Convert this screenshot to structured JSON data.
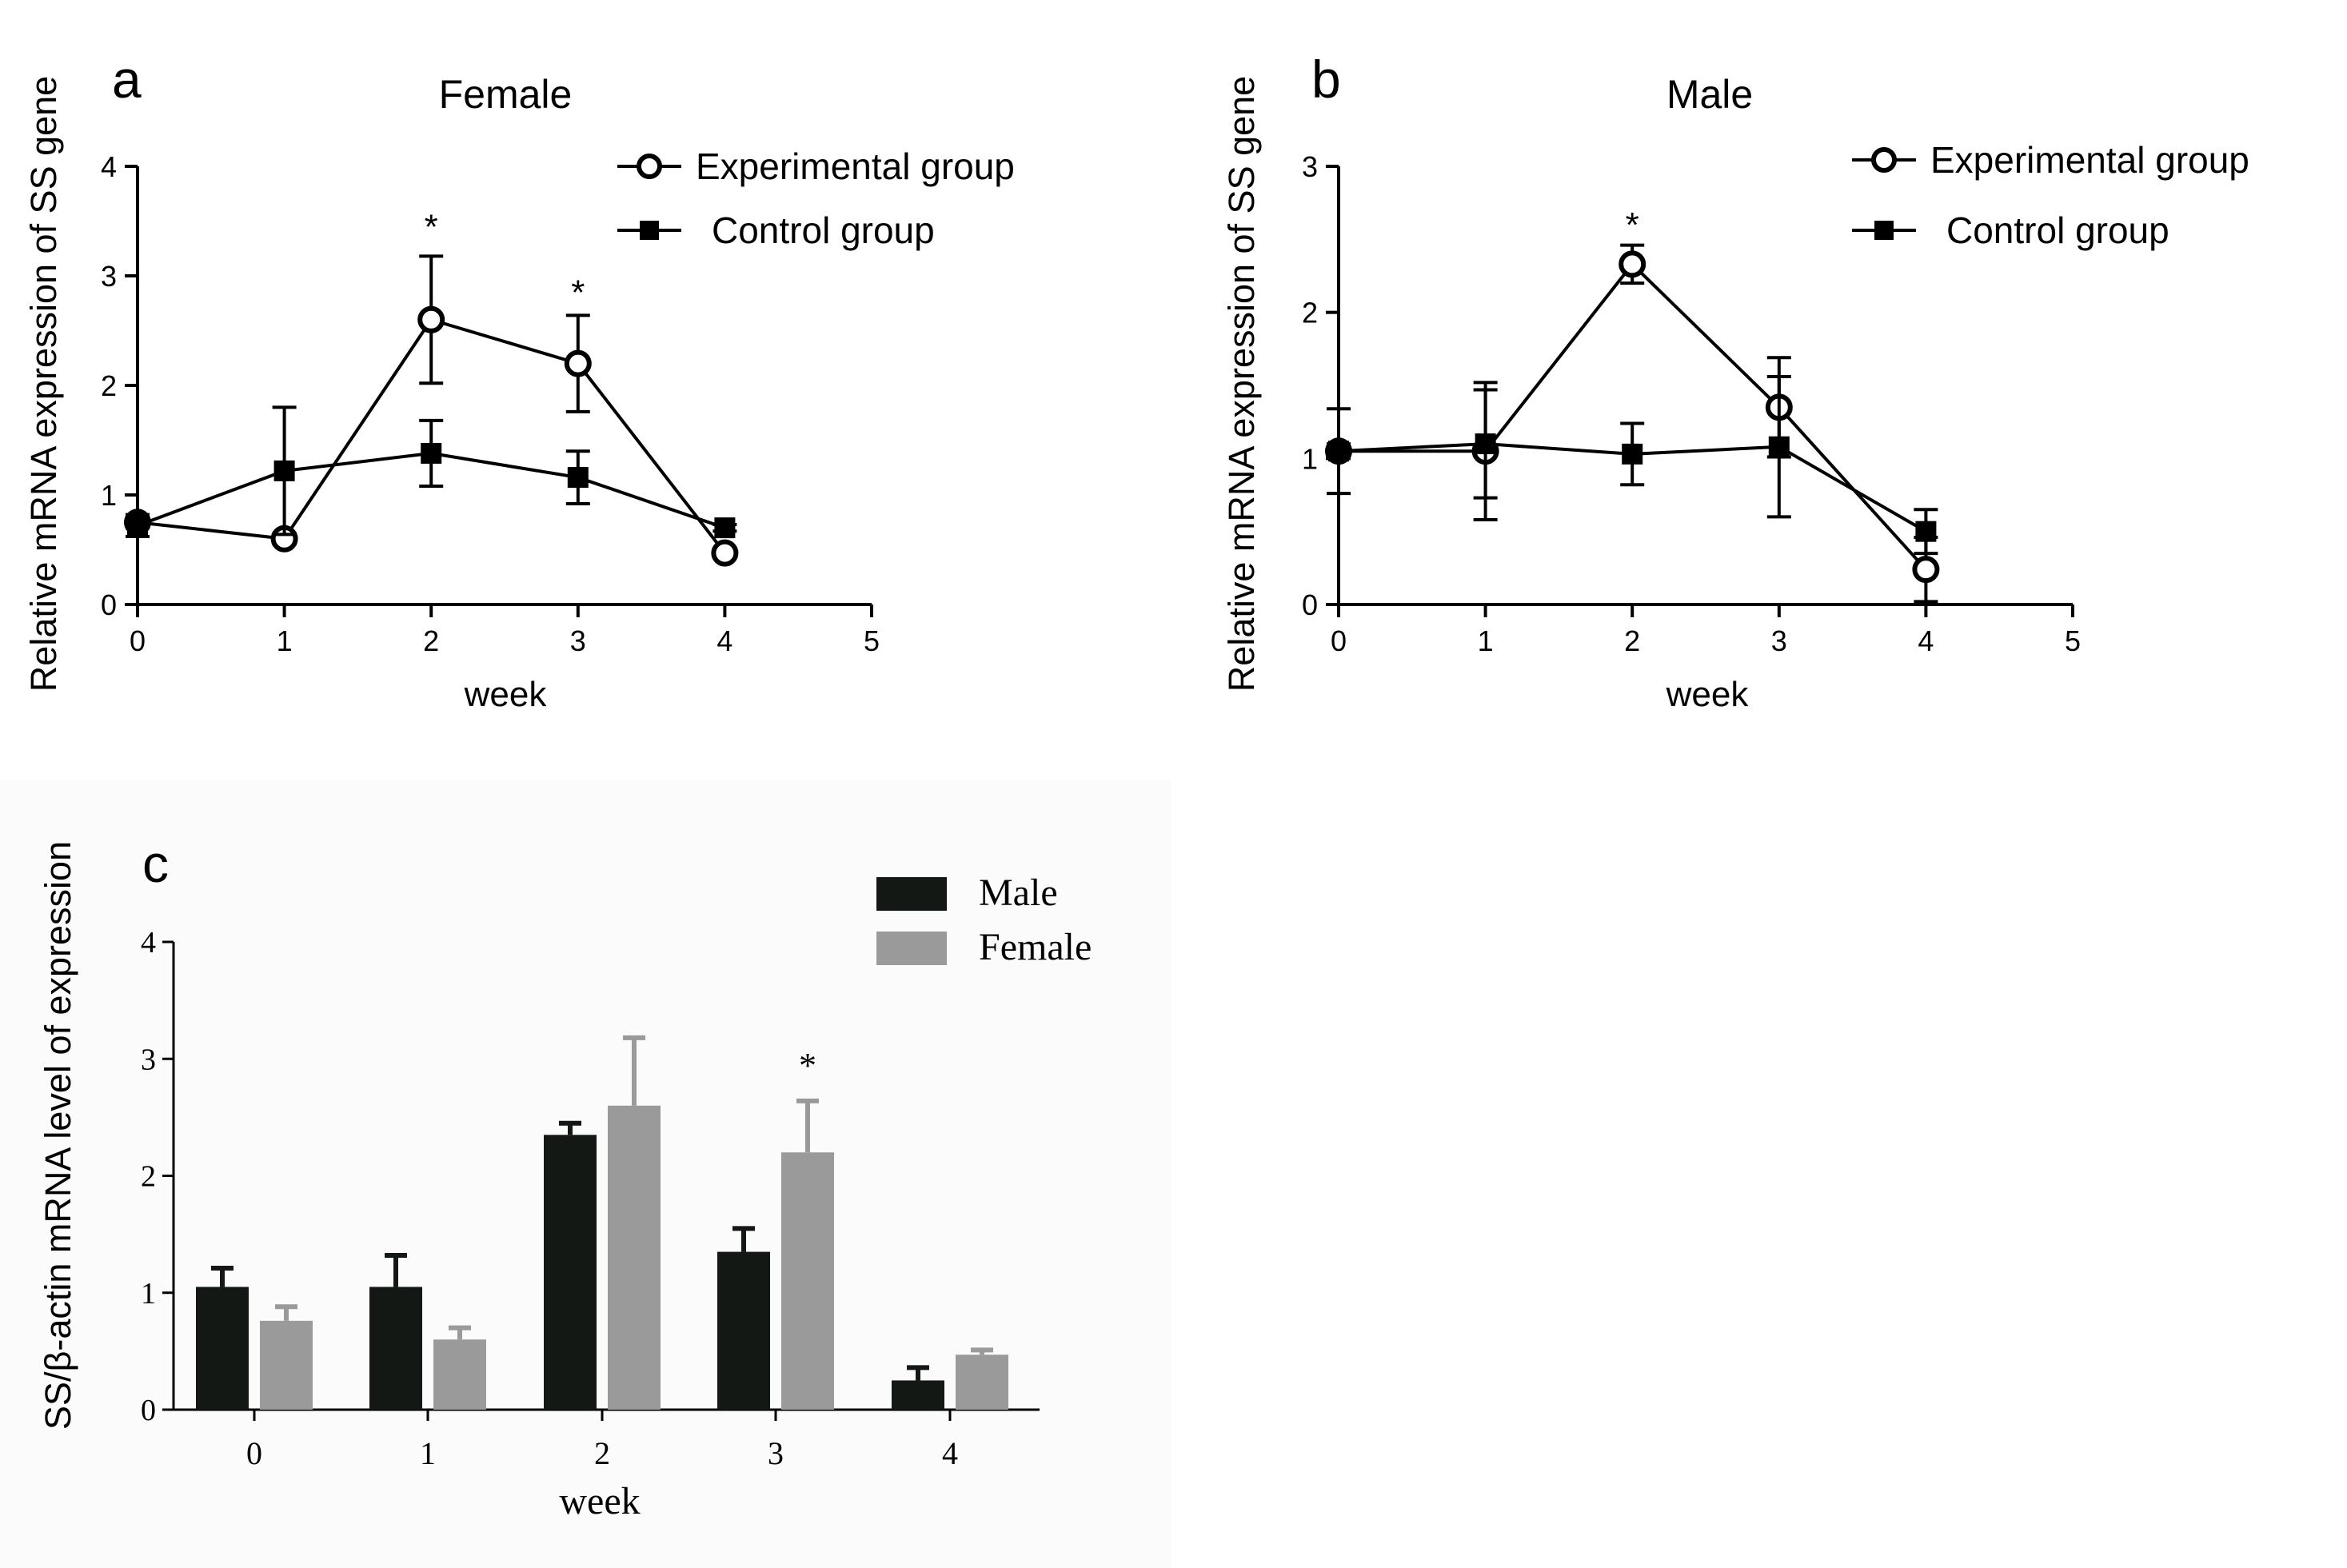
{
  "panels": {
    "a": {
      "letter": "a"
    },
    "b": {
      "letter": "b"
    },
    "c": {
      "letter": "c"
    }
  },
  "chart_data": [
    {
      "id": "a",
      "type": "line",
      "title": "Female",
      "xlabel": "week",
      "ylabel": "Relative mRNA expression of SS gene",
      "xlim": [
        0,
        5
      ],
      "ylim": [
        0,
        4
      ],
      "xticks": [
        "0",
        "1",
        "2",
        "3",
        "4",
        "5"
      ],
      "yticks": [
        "0",
        "1",
        "2",
        "3",
        "4"
      ],
      "x": [
        0,
        1,
        2,
        3,
        4
      ],
      "legend_position": "top-right",
      "series": [
        {
          "name": "Experimental group",
          "marker": "open-circle",
          "values": [
            0.75,
            0.6,
            2.6,
            2.2,
            0.47
          ],
          "errors": [
            0.05,
            0.05,
            0.58,
            0.44,
            0.04
          ]
        },
        {
          "name": "Control group",
          "marker": "filled-square",
          "values": [
            0.72,
            1.22,
            1.38,
            1.16,
            0.7
          ],
          "errors": [
            0.1,
            0.58,
            0.3,
            0.24,
            0.03
          ]
        }
      ],
      "annotations": [
        {
          "x": 2,
          "y": 3.5,
          "text": "*"
        },
        {
          "x": 3,
          "y": 2.9,
          "text": "*"
        }
      ]
    },
    {
      "id": "b",
      "type": "line",
      "title": "Male",
      "xlabel": "week",
      "ylabel": "Relative mRNA expression of SS gene",
      "xlim": [
        0,
        5
      ],
      "ylim": [
        0,
        3
      ],
      "xticks": [
        "0",
        "1",
        "2",
        "3",
        "4",
        "5"
      ],
      "yticks": [
        "0",
        "1",
        "2",
        "3"
      ],
      "x": [
        0,
        1,
        2,
        3,
        4
      ],
      "legend_position": "top-right",
      "series": [
        {
          "name": "Experimental group",
          "marker": "open-circle",
          "values": [
            1.05,
            1.05,
            2.33,
            1.35,
            0.24
          ],
          "errors": [
            0.29,
            0.47,
            0.13,
            0.34,
            0.22
          ]
        },
        {
          "name": "Control group",
          "marker": "filled-square",
          "values": [
            1.05,
            1.1,
            1.03,
            1.08,
            0.5
          ],
          "errors": [
            0.05,
            0.37,
            0.21,
            0.48,
            0.15
          ]
        }
      ],
      "annotations": [
        {
          "x": 2,
          "y": 2.64,
          "text": "*"
        }
      ]
    },
    {
      "id": "c",
      "type": "bar",
      "title": "",
      "xlabel": "week",
      "ylabel": "SS/β-actin mRNA level of expression",
      "ylim": [
        0,
        4
      ],
      "yticks": [
        "0",
        "1",
        "2",
        "3",
        "4"
      ],
      "categories": [
        "0",
        "1",
        "2",
        "3",
        "4"
      ],
      "legend_position": "top-right",
      "series": [
        {
          "name": "Male",
          "color": "#141814",
          "values": [
            1.05,
            1.05,
            2.35,
            1.35,
            0.25
          ],
          "errors": [
            0.16,
            0.27,
            0.1,
            0.2,
            0.11
          ]
        },
        {
          "name": "Female",
          "color": "#9a9a9a",
          "values": [
            0.76,
            0.6,
            2.6,
            2.2,
            0.47
          ],
          "errors": [
            0.12,
            0.1,
            0.58,
            0.44,
            0.04
          ]
        }
      ],
      "annotations": [
        {
          "category": "3",
          "series": "Female",
          "text": "*"
        }
      ]
    }
  ]
}
